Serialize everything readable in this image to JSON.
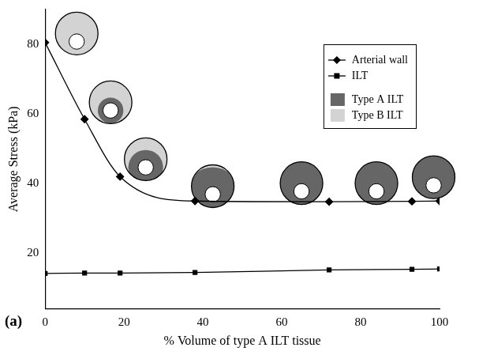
{
  "chart_data": {
    "type": "line",
    "x_label": "% Volume of type A ILT tissue",
    "y_label": "Average Stress (kPa)",
    "x": [
      0,
      10,
      19,
      38,
      72,
      93,
      100
    ],
    "series": [
      {
        "name": "Arterial wall",
        "color": "#000000",
        "marker": "diamond",
        "line_style": "solid",
        "values": [
          80.5,
          58.5,
          42,
          35,
          34.8,
          34.9,
          35
        ]
      },
      {
        "name": "ILT",
        "color": "#000000",
        "marker": "square",
        "line_style": "solid",
        "values": [
          14.2,
          14.3,
          14.3,
          14.5,
          15.2,
          15.4,
          15.5
        ]
      }
    ],
    "xlim": [
      0,
      100
    ],
    "xticks": [
      0,
      20,
      40,
      60,
      80,
      100
    ],
    "ylim": [
      4,
      90
    ],
    "yticks": [
      20,
      40,
      60,
      80
    ],
    "grid": false,
    "legend": "top-right",
    "annotations": [
      {
        "text": "(a)"
      },
      {
        "text": "Type A ILT",
        "color": "#666666"
      },
      {
        "text": "Type B ILT",
        "color": "#d3d3d3"
      }
    ]
  }
}
